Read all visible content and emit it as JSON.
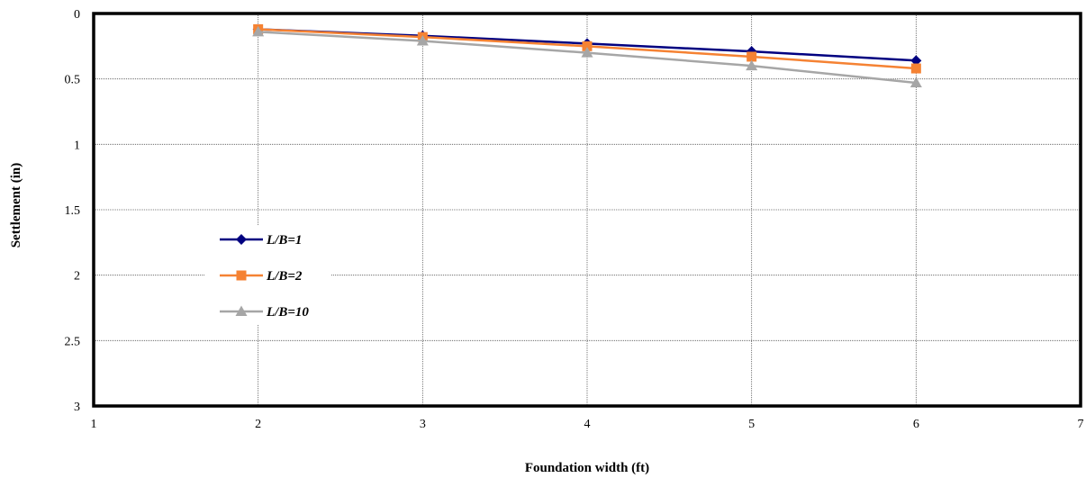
{
  "chart_data": {
    "type": "line",
    "title": "",
    "xlabel": "Foundation width (ft)",
    "ylabel": "Settlement (in)",
    "xlim": [
      1,
      7
    ],
    "ylim": [
      0,
      3
    ],
    "y_inverted": true,
    "x_ticks": [
      1,
      2,
      3,
      4,
      5,
      6,
      7
    ],
    "y_ticks": [
      0,
      0.5,
      1,
      1.5,
      2,
      2.5,
      3
    ],
    "grid": true,
    "legend_position": "left",
    "x": [
      2,
      3,
      4,
      5,
      6
    ],
    "series": [
      {
        "name": "L/B=1",
        "color": "#000080",
        "marker": "diamond",
        "values": [
          0.12,
          0.17,
          0.23,
          0.29,
          0.36
        ]
      },
      {
        "name": "L/B=2",
        "color": "#F58233",
        "marker": "square",
        "values": [
          0.12,
          0.18,
          0.25,
          0.33,
          0.42
        ]
      },
      {
        "name": "L/B=10",
        "color": "#A6A6A6",
        "marker": "triangle",
        "values": [
          0.14,
          0.21,
          0.3,
          0.4,
          0.53
        ]
      }
    ]
  }
}
